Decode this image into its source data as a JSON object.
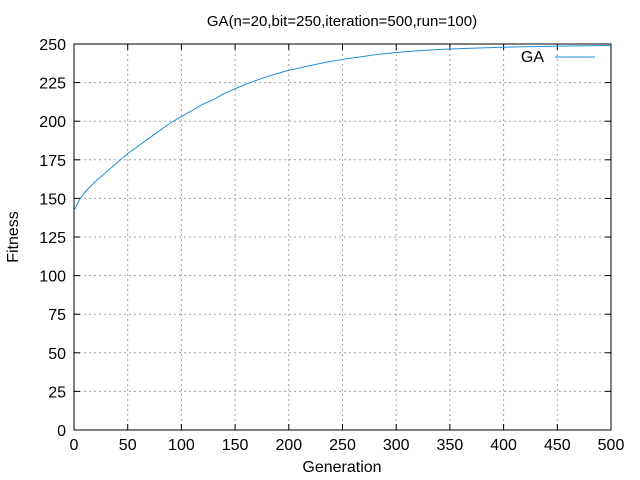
{
  "chart_data": {
    "type": "line",
    "title": "GA(n=20,bit=250,iteration=500,run=100)",
    "xlabel": "Generation",
    "ylabel": "Fitness",
    "xlim": [
      0,
      500
    ],
    "ylim": [
      0,
      250
    ],
    "xticks": [
      0,
      50,
      100,
      150,
      200,
      250,
      300,
      350,
      400,
      450,
      500
    ],
    "yticks": [
      0,
      25,
      50,
      75,
      100,
      125,
      150,
      175,
      200,
      225,
      250
    ],
    "grid": true,
    "legend_position": "top-right",
    "series": [
      {
        "name": "GA",
        "color": "#1f8fd6",
        "x": [
          0,
          5,
          10,
          20,
          30,
          40,
          50,
          60,
          70,
          80,
          90,
          100,
          110,
          120,
          130,
          140,
          150,
          160,
          170,
          180,
          190,
          200,
          210,
          220,
          230,
          240,
          250,
          260,
          270,
          280,
          290,
          300,
          320,
          340,
          360,
          380,
          400,
          420,
          440,
          460,
          480,
          500
        ],
        "y": [
          142,
          149,
          154,
          161,
          167,
          173,
          179,
          184,
          189,
          194,
          199,
          203,
          207,
          211,
          214,
          218,
          221,
          224,
          226.5,
          229,
          231,
          233,
          234.5,
          236,
          237.5,
          238.8,
          240,
          241,
          242,
          243,
          243.8,
          244.5,
          245.6,
          246.4,
          247,
          247.5,
          247.9,
          248.2,
          248.5,
          248.7,
          248.9,
          249
        ]
      }
    ]
  }
}
